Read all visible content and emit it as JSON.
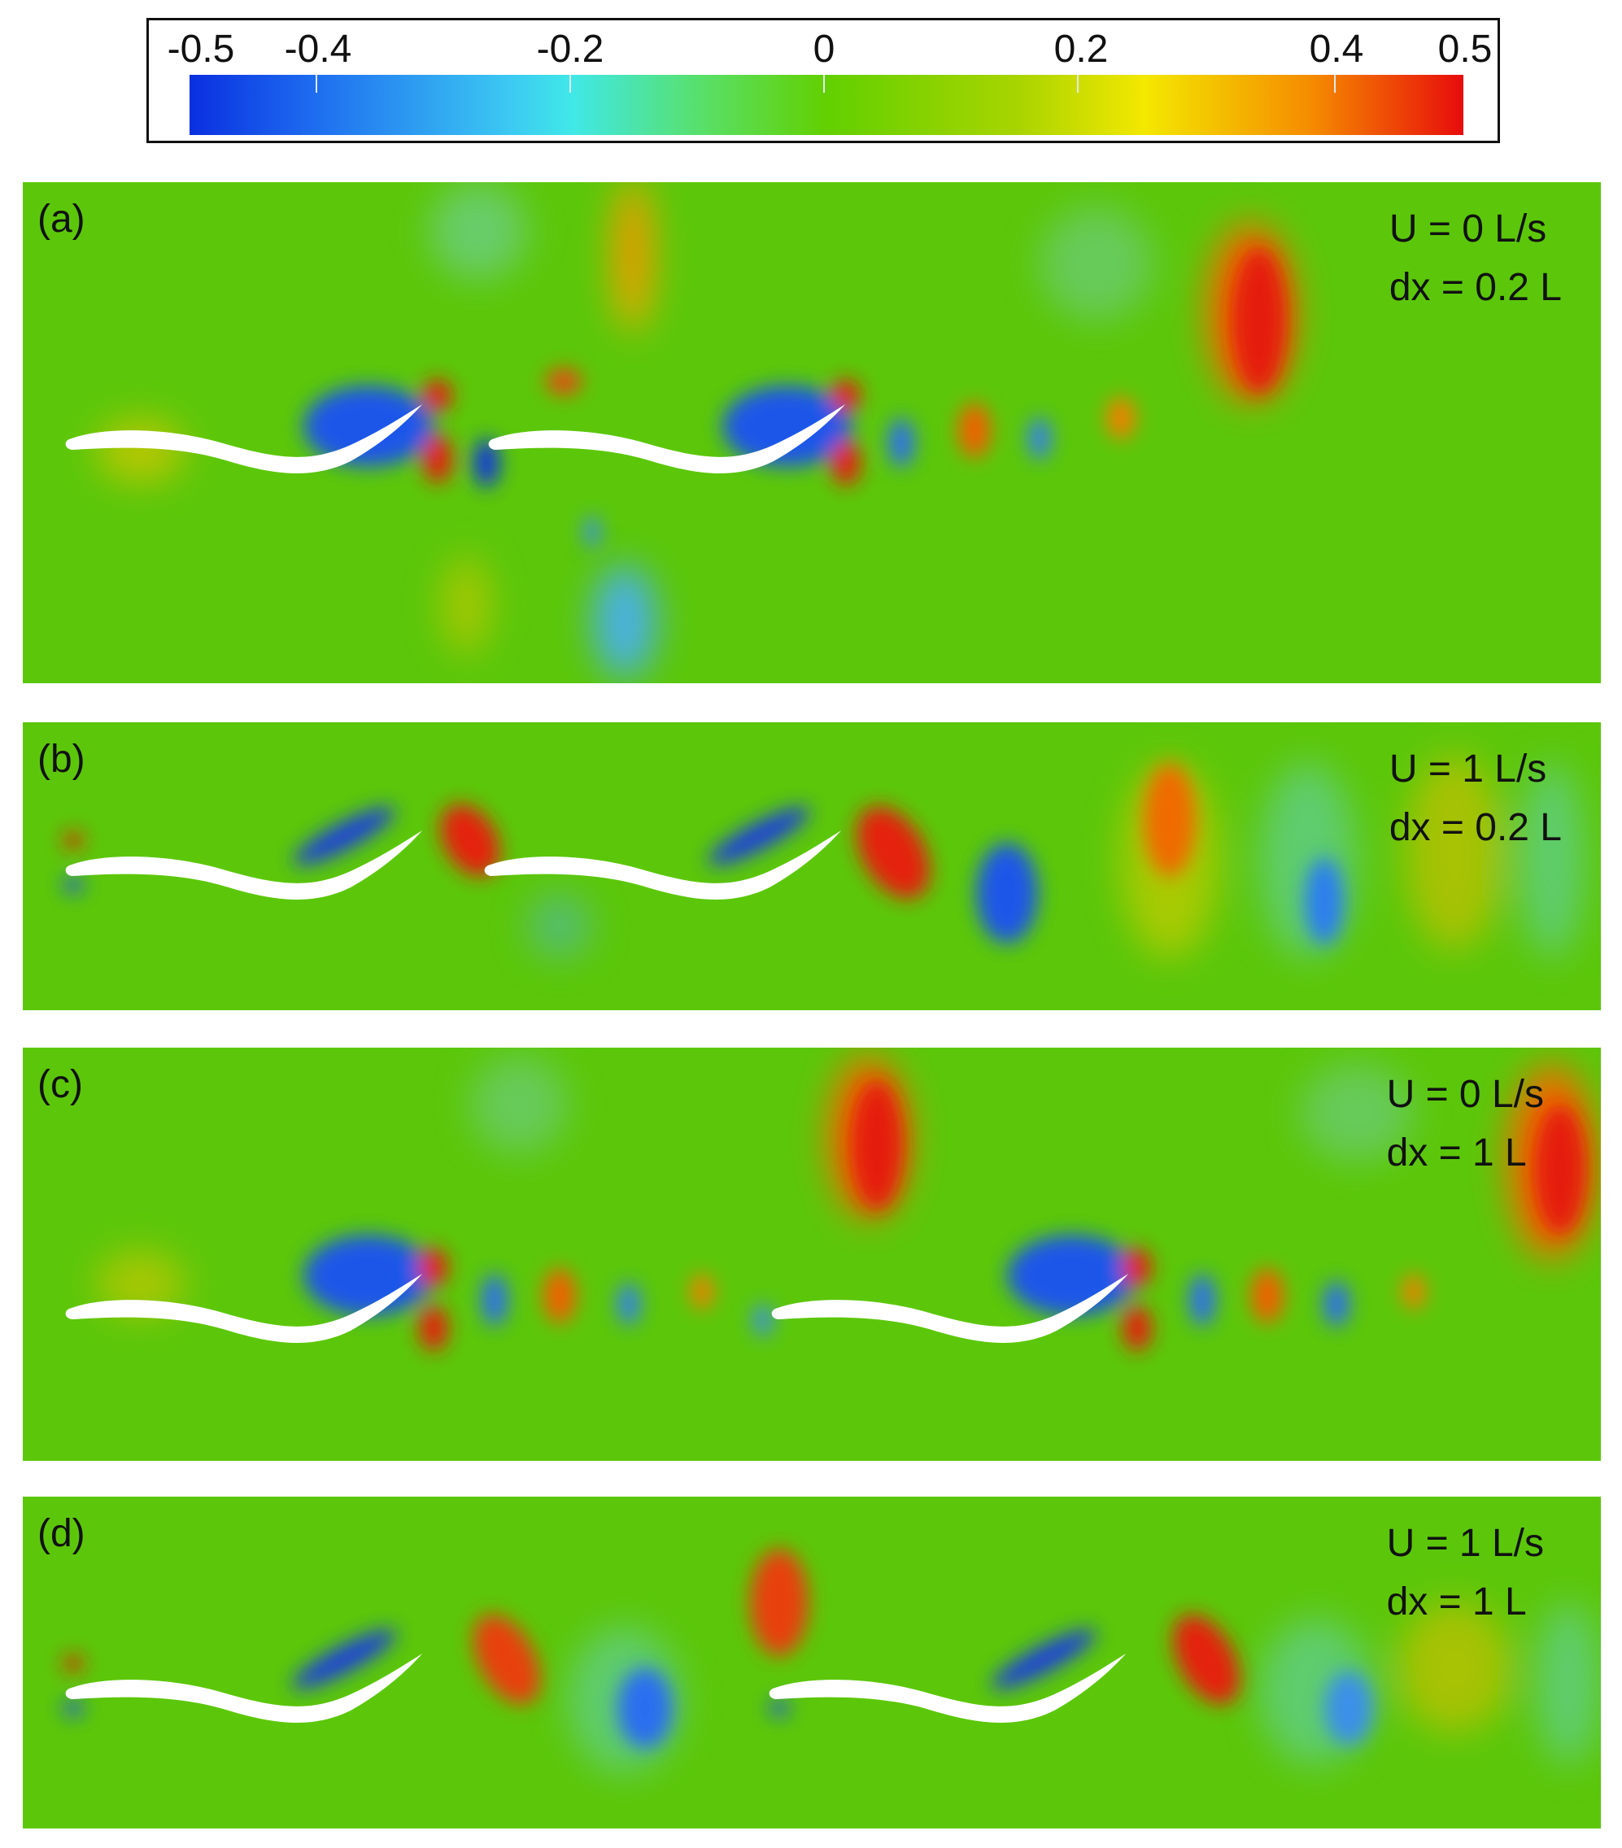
{
  "colorbar": {
    "ticks": [
      "-0.5",
      "-0.4",
      "-0.2",
      "0",
      "0.2",
      "0.4",
      "0.5"
    ],
    "range": [
      -0.5,
      0.5
    ],
    "colors": [
      "#0a2fe0",
      "#1e7df0",
      "#40e0f0",
      "#5cd85c",
      "#62c800",
      "#b5d800",
      "#f2e400",
      "#f59000",
      "#e81010"
    ]
  },
  "panels": [
    {
      "label": "(a)",
      "velocity": "U = 0 L/s",
      "spacing": "dx = 0.2 L"
    },
    {
      "label": "(b)",
      "velocity": "U = 1 L/s",
      "spacing": "dx = 0.2 L"
    },
    {
      "label": "(c)",
      "velocity": "U = 0 L/s",
      "spacing": "dx = 1 L"
    },
    {
      "label": "(d)",
      "velocity": "U = 1 L/s",
      "spacing": "dx = 1 L"
    }
  ],
  "field_colors": {
    "background": "#5cc70a",
    "foil": "#ffffff"
  }
}
